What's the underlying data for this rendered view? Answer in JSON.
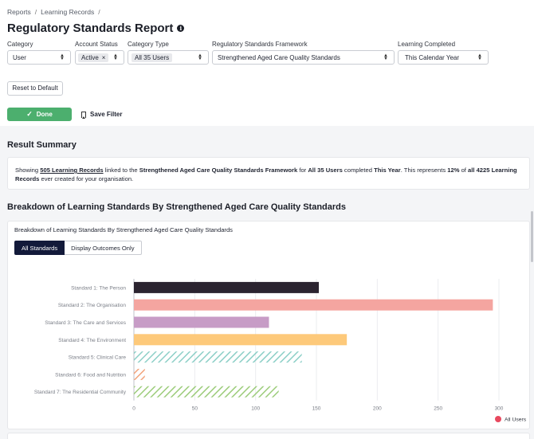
{
  "breadcrumb": {
    "items": [
      "Reports",
      "Learning Records"
    ],
    "separator": "/"
  },
  "page": {
    "title": "Regulatory Standards Report",
    "info_icon": "i"
  },
  "filters": {
    "category": {
      "label": "Category",
      "value": "User"
    },
    "account_status": {
      "label": "Account Status",
      "tag": "Active",
      "remove": "×"
    },
    "category_type": {
      "label": "Category Type",
      "tag": "All 35 Users"
    },
    "framework": {
      "label": "Regulatory Standards Framework",
      "value": "Strengthened Aged Care Quality Standards"
    },
    "learning_completed": {
      "label": "Learning Completed",
      "value": "This Calendar Year"
    },
    "arrow_up": "▲",
    "arrow_down": "▼"
  },
  "actions": {
    "reset": "Reset to Default",
    "done": "Done",
    "done_icon": "✓",
    "save": "Save Filter"
  },
  "summary": {
    "heading": "Result Summary",
    "t1": "Showing ",
    "records": "505 Learning Records",
    "t2": " linked to the ",
    "framework": "Strengthened Aged Care Quality Standards Framework",
    "t3": " for ",
    "users": "All 35 Users",
    "t4": " completed ",
    "period": "This Year",
    "t5": ". This represents ",
    "pct": "12%",
    "t6": " of ",
    "total": "all 4225 Learning Records",
    "t7": " ever created for your organisation."
  },
  "breakdown": {
    "heading": "Breakdown of Learning Standards By Strengthened Aged Care Quality Standards",
    "subtitle": "Breakdown of Learning Standards By Strengthened Aged Care Quality Standards",
    "tabs": [
      "All Standards",
      "Display Outcomes Only"
    ]
  },
  "colors": {
    "done_green": "#4caf6e",
    "active_tab": "#131a3a",
    "legend_dot": "#e8495f"
  },
  "chart_data": {
    "type": "bar",
    "orientation": "horizontal",
    "categories": [
      "Standard 1: The Person",
      "Standard 2: The Organisation",
      "Standard 3: The Care and Services",
      "Standard 4: The Environment",
      "Standard 5: Clinical Care",
      "Standard 6: Food and Nutrition",
      "Standard 7: The Residential Community"
    ],
    "values": [
      152,
      295,
      111,
      175,
      138,
      9,
      119
    ],
    "bar_colors": [
      "#2b2430",
      "#f4a5a0",
      "#c79cc6",
      "#fdc97a",
      "#8ccfc7",
      "#f2a27a",
      "#9ccc7a"
    ],
    "bar_patterns": [
      "solid",
      "solid",
      "solid",
      "solid",
      "hatch",
      "hatch",
      "hatch"
    ],
    "xlim": [
      0,
      300
    ],
    "xticks": [
      "0",
      "50",
      "100",
      "150",
      "200",
      "250",
      "300"
    ],
    "grid": true,
    "legend": {
      "position": "bottom-right",
      "label": "All Users"
    }
  }
}
